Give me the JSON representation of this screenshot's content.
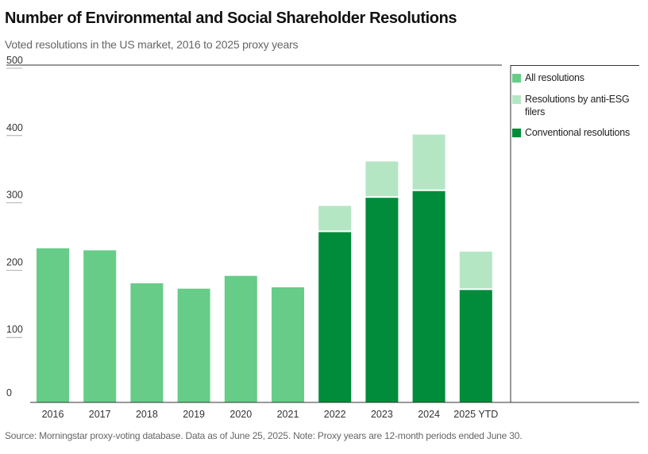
{
  "header": {
    "title": "Number of Environmental and Social Shareholder Resolutions",
    "subtitle": "Voted resolutions in the US market, 2016 to 2025 proxy years"
  },
  "footer": {
    "source": "Source: Morningstar proxy-voting database. Data as of June 25, 2025. Note: Proxy years are 12-month periods ended June 30."
  },
  "colors": {
    "all": "#66cc88",
    "anti_esg": "#b5e6c4",
    "conventional": "#008c3a",
    "axis": "#333333",
    "grid": "#999999"
  },
  "legend": {
    "items": [
      {
        "label": "All resolutions",
        "color": "#66cc88"
      },
      {
        "label": "Resolutions by anti-ESG filers",
        "color": "#b5e6c4"
      },
      {
        "label": "Conventional resolutions",
        "color": "#008c3a"
      }
    ]
  },
  "chart_data": {
    "type": "bar",
    "stacked": true,
    "categories": [
      "2016",
      "2017",
      "2018",
      "2019",
      "2020",
      "2021",
      "2022",
      "2023",
      "2024",
      "2025 YTD"
    ],
    "series": [
      {
        "name": "All resolutions",
        "values": [
          229,
          226,
          177,
          169,
          188,
          171,
          null,
          null,
          null,
          null
        ]
      },
      {
        "name": "Conventional resolutions",
        "values": [
          null,
          null,
          null,
          null,
          null,
          null,
          253,
          304,
          314,
          167
        ]
      },
      {
        "name": "Resolutions by anti-ESG filers",
        "values": [
          null,
          null,
          null,
          null,
          null,
          null,
          39,
          54,
          84,
          57
        ]
      }
    ],
    "yticks": [
      0,
      100,
      200,
      300,
      400,
      500
    ],
    "ylim": [
      0,
      500
    ],
    "grid": true,
    "legend_position": "right"
  }
}
